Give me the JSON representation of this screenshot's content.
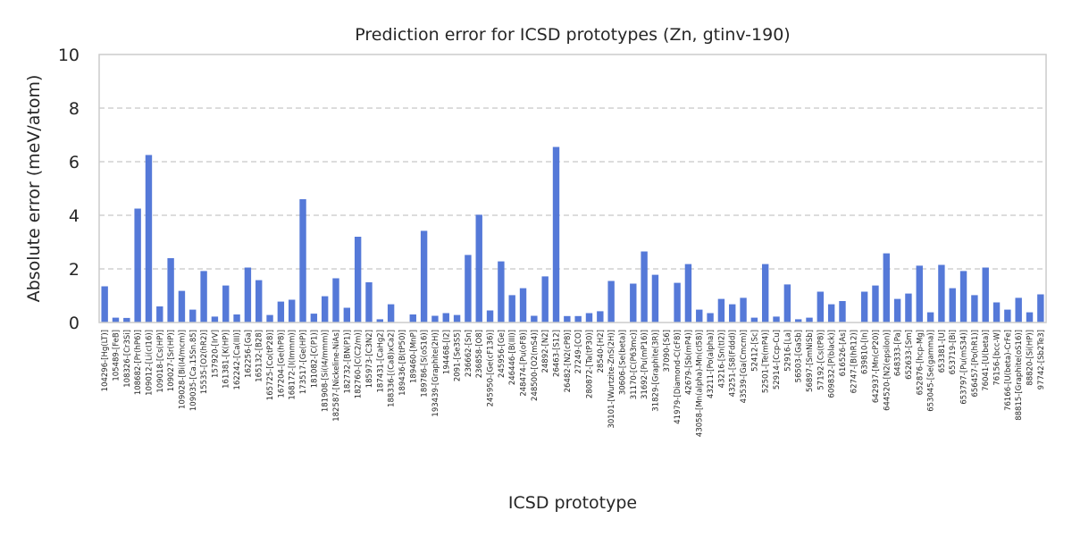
{
  "chart_data": {
    "type": "bar",
    "title": "Prediction error for ICSD prototypes (Zn, gtinv-190)",
    "xlabel": "ICSD prototype",
    "ylabel": "Absolute error (meV/atom)",
    "ylim": [
      0,
      10
    ],
    "yticks": [
      0,
      2,
      4,
      6,
      8,
      10
    ],
    "grid": true,
    "color": "#4c72d6",
    "categories": [
      "104296-[Hg(LT)]",
      "105489-[FeB]",
      "108326-[Cr3Si]",
      "108682-[Pr(hP6)]",
      "109012-[Li(cI16)]",
      "109018-[Cs(HP)]",
      "109027-[Sr(HP)]",
      "109028-[Bi(I4/mcm)]",
      "109035-[Ca.15Sn.85]",
      "15535-[O2(hR2)]",
      "157920-[IrV]",
      "161381-[K(HP)]",
      "162242-[Ca(III)]",
      "162256-[Ga]",
      "165132-[B28]",
      "165725-[Co(tP28)]",
      "167204-[Ge(hP8)]",
      "168172-[I(Immm)]",
      "173517-[Ge(HP)]",
      "181082-[C(P1)]",
      "181908-[Si(I4/mmm)]",
      "182587-[Nickeline-NiAs]",
      "182732-[BN(P1)]",
      "182760-[C(C2/m)]",
      "185973-[C3N2]",
      "187431-[CaHg2]",
      "188336-[(Ca8)xCa2]",
      "189436-[B(tP50)]",
      "189460-[MnP]",
      "189786-[S(oS16)]",
      "193439-[Graphite(2H)]",
      "194468-[I2]",
      "2091-[Se3S5]",
      "236662-[Sn]",
      "236858-[O8]",
      "245950-[Ge(cF136)]",
      "245956-[Ge]",
      "246446-[B(III)]",
      "248474-[Pu(oF8)]",
      "248500-[O2(mS4)]",
      "24892-[N2]",
      "26463-[S12]",
      "26482-[N2(cP8)]",
      "27249-[CO]",
      "280872-[Ta(tP30)]",
      "28540-[H2]",
      "30101-[Wurtzite-ZnS(2H)]",
      "30606-[Se(beta)]",
      "31170-[C(P63mc)]",
      "31692-[Pu(mP16)]",
      "31829-[Graphite(3R)]",
      "37090-[S6]",
      "41979-[Diamond-C(cF8)]",
      "42679-[Sb(mP4)]",
      "43058-[Mn(alpha)-Mn(cI58)]",
      "43211-[Po(alpha)]",
      "43216-[Sn(tI2)]",
      "43251-[S8(Fddd)]",
      "43539-[Ga(Cmcm)]",
      "52412-[Sc]",
      "52501-[Te(mP4)]",
      "52914-[Ccp-Cu]",
      "52916-[La]",
      "56503-[GaSb]",
      "56897-[SmNiSb]",
      "57192-[Cs(tP8)]",
      "609832-[P(black)]",
      "616526-[As]",
      "62747-[B(hR12)]",
      "639810-[In]",
      "642937-[Mn(cP20)]",
      "644520-[N2(epsilon)]",
      "648333-[Pa]",
      "652633-[Sm]",
      "652876-[hcp-Mg]",
      "653045-[Se(gamma)]",
      "653381-[U]",
      "653719-[Bi]",
      "653797-[Pu(mS34)]",
      "656457-[Po(hR1)]",
      "76041-[U(beta)]",
      "76156-[bcc-W]",
      "76166-[U(beta)-CrFe]",
      "88815-[Graphite(oS16)]",
      "88820-[Si(HP)]",
      "97742-[Sb2Te3]"
    ],
    "values": [
      1.35,
      0.18,
      0.17,
      4.25,
      6.25,
      0.6,
      2.4,
      1.18,
      0.48,
      1.92,
      0.22,
      1.38,
      0.3,
      2.05,
      1.58,
      0.28,
      0.78,
      0.85,
      4.6,
      0.33,
      0.98,
      1.65,
      0.55,
      3.2,
      1.5,
      0.12,
      0.68,
      0.0,
      0.3,
      3.42,
      0.25,
      0.35,
      0.28,
      2.52,
      4.02,
      0.45,
      2.28,
      1.02,
      1.28,
      0.25,
      1.72,
      6.55,
      0.24,
      0.24,
      0.35,
      0.42,
      1.55,
      0.0,
      1.45,
      2.65,
      1.78,
      0.0,
      1.48,
      2.18,
      0.48,
      0.35,
      0.88,
      0.68,
      0.92,
      0.18,
      2.18,
      0.22,
      1.42,
      0.12,
      0.18,
      1.15,
      0.68,
      0.8,
      0.0,
      1.15,
      1.38,
      2.58,
      0.88,
      1.08,
      2.12,
      0.38,
      2.15,
      1.28,
      1.92,
      1.02,
      2.05,
      0.75,
      0.48,
      0.92,
      0.38,
      1.05
    ]
  }
}
